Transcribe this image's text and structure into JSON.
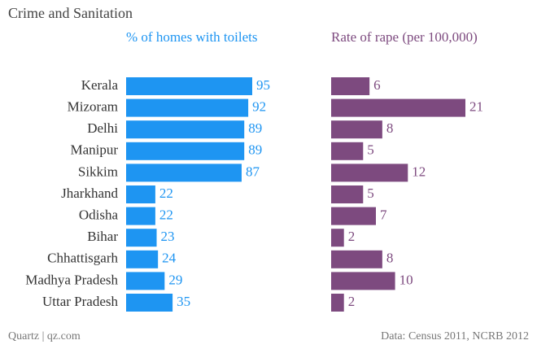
{
  "chart_data": {
    "type": "bar",
    "title": "Crime and Sanitation",
    "categories": [
      "Kerala",
      "Mizoram",
      "Delhi",
      "Manipur",
      "Sikkim",
      "Jharkhand",
      "Odisha",
      "Bihar",
      "Chhattisgarh",
      "Madhya Pradesh",
      "Uttar Pradesh"
    ],
    "series": [
      {
        "name": "% of homes with toilets",
        "color": "#1e95f2",
        "values": [
          95,
          92,
          89,
          89,
          87,
          22,
          22,
          23,
          24,
          29,
          35
        ]
      },
      {
        "name": "Rate of rape (per 100,000)",
        "color": "#7d4a7f",
        "values": [
          6,
          21,
          8,
          5,
          12,
          5,
          7,
          2,
          8,
          10,
          2
        ]
      }
    ],
    "credit": "Quartz | qz.com",
    "source": "Data: Census 2011, NCRB 2012"
  }
}
